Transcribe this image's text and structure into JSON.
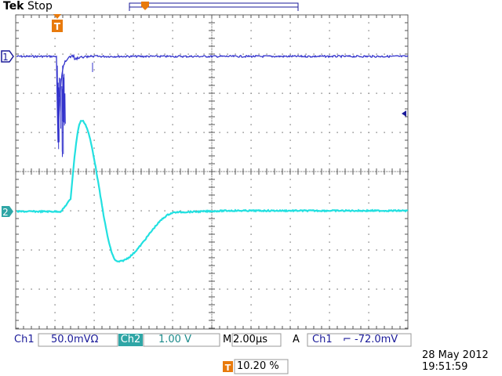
{
  "header": {
    "brand": "Tek",
    "run_state": "Stop"
  },
  "markers": {
    "trigger_marker": "T",
    "ch1_marker": "1",
    "ch2_marker": "2"
  },
  "readouts": {
    "ch1_label": "Ch1",
    "ch1_scale": "50.0mVΩ",
    "ch2_label": "Ch2",
    "ch2_scale": "1.00 V",
    "timebase_label": "M",
    "timebase": "2.00µs",
    "trigger_mode": "A",
    "trigger_source": "Ch1",
    "trigger_slope_icon": "falling-edge-icon",
    "trigger_level": "-72.0mV",
    "trigger_position": "10.20 %"
  },
  "datetime": {
    "date": "28 May 2012",
    "time": "19:51:59"
  },
  "colors": {
    "ch1": "#3333cc",
    "ch2": "#22e0e0",
    "grid": "#444444",
    "trigger": "#e87a0c",
    "ch2_badge": "#2fa6a6"
  }
}
